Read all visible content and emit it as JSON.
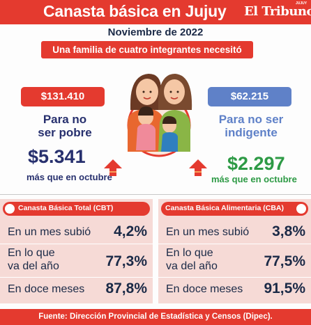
{
  "header": {
    "title": "Canasta básica en Jujuy",
    "brand": "El Tribuno",
    "brand_small": "JUJUY"
  },
  "subtitle": "Noviembre de 2022",
  "family_banner": "Una familia de cuatro integrantes necesitó",
  "poverty": {
    "amount": "$131.410",
    "label_line1": "Para no",
    "label_line2": "ser pobre",
    "increase": "$5.341",
    "increase_note": "más que en octubre"
  },
  "indigence": {
    "amount": "$62.215",
    "label_line1": "Para no ser",
    "label_line2": "indigente",
    "increase": "$2.297",
    "increase_note": "más que en octubre"
  },
  "cbt": {
    "title": "Canasta Básica Total (CBT)",
    "rows": [
      {
        "label_line1": "En un mes subió",
        "label_line2": "",
        "value": "4,2%"
      },
      {
        "label_line1": "En lo que",
        "label_line2": "va del año",
        "value": "77,3%"
      },
      {
        "label_line1": "En doce meses",
        "label_line2": "",
        "value": "87,8%"
      }
    ]
  },
  "cba": {
    "title": "Canasta Básica Alimentaria (CBA)",
    "rows": [
      {
        "label_line1": "En un mes subió",
        "label_line2": "",
        "value": "3,8%"
      },
      {
        "label_line1": "En lo que",
        "label_line2": "va del año",
        "value": "77,5%"
      },
      {
        "label_line1": "En doce meses",
        "label_line2": "",
        "value": "91,5%"
      }
    ]
  },
  "footer": "Fuente: Dirección Provincial de Estadística y Censos (Dipec).",
  "colors": {
    "red": "#e43a2f",
    "navy": "#27306e",
    "blue": "#5f81c8",
    "green": "#2d9a45",
    "panel_bg": "#f6dad6"
  },
  "icons": [
    "family-illustration",
    "up-arrow-icon"
  ]
}
